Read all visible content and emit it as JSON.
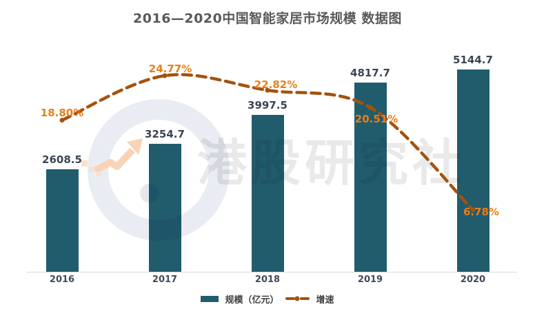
{
  "chart_data": {
    "type": "bar",
    "combo": "bar+line",
    "title": "2016—2020中国智能家居市场规模 数据图",
    "categories": [
      "2016",
      "2017",
      "2018",
      "2019",
      "2020"
    ],
    "series": [
      {
        "name": "规模（亿元）",
        "type": "bar",
        "values": [
          2608.5,
          3254.7,
          3997.5,
          4817.7,
          5144.7
        ],
        "labels": [
          "2608.5",
          "3254.7",
          "3997.5",
          "4817.7",
          "5144.7"
        ]
      },
      {
        "name": "增速",
        "type": "line",
        "unit": "%",
        "values": [
          18.8,
          24.77,
          22.82,
          20.51,
          6.78
        ],
        "labels": [
          "18.80%",
          "24.77%",
          "22.82%",
          "20.51%",
          "6.78%"
        ]
      }
    ],
    "xlabel": "",
    "ylabel": "",
    "grid": false,
    "legend_position": "bottom"
  },
  "watermark": {
    "text": "港股研究社"
  },
  "colors": {
    "bar": "#215c6d",
    "line": "#a4520d",
    "percent_label": "#e87e17",
    "value_label": "#3a4553",
    "title": "#595959",
    "axis_line": "#d9d9d9",
    "x_tick": "#3f4a56",
    "watermark_text": "#e9e9e9",
    "watermark_ring": "#eaecf3",
    "watermark_dot": "#e6e8f0",
    "watermark_arrow": "#f8d3b6",
    "watermark_pixels": "#fae0ce"
  }
}
